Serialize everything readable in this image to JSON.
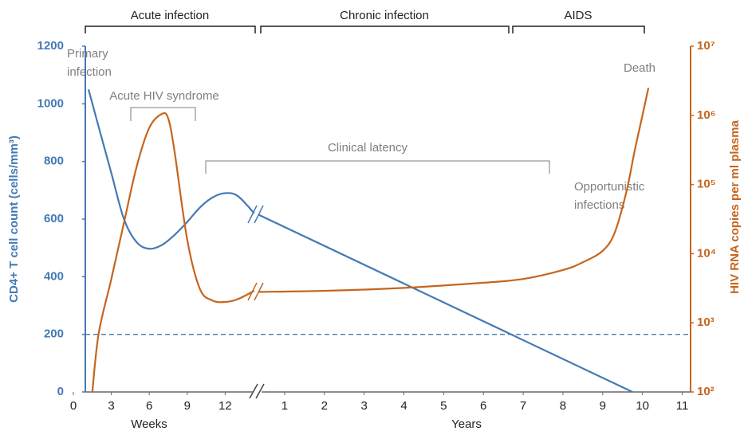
{
  "chart_data": {
    "type": "line",
    "phases": [
      "Acute infection",
      "Chronic infection",
      "AIDS"
    ],
    "ylabel": "CD4+ T cell count (cells/mm³)",
    "y2label": "HIV RNA copies per ml plasma",
    "ylim": [
      0,
      1200
    ],
    "yticks": [
      0,
      200,
      400,
      600,
      800,
      1000,
      1200
    ],
    "y2lim": [
      100,
      10000000
    ],
    "y2log": true,
    "y2ticks": [
      {
        "value": 100,
        "label": "10²"
      },
      {
        "value": 1000,
        "label": "10³"
      },
      {
        "value": 10000,
        "label": "10⁴"
      },
      {
        "value": 100000,
        "label": "10⁵"
      },
      {
        "value": 1000000,
        "label": "10⁶"
      },
      {
        "value": 10000000,
        "label": "10⁷"
      }
    ],
    "reference_line": 200,
    "annotations": {
      "primary": [
        "Primary",
        "infection"
      ],
      "syndrome": "Acute HIV syndrome",
      "latency": "Clinical latency",
      "opportunistic": [
        "Opportunistic",
        "infections"
      ],
      "death": "Death"
    },
    "segments": [
      {
        "xlabel": "Weeks",
        "xlim": [
          0,
          14.5
        ],
        "xticks": [
          0,
          3,
          6,
          9,
          12
        ],
        "series": [
          {
            "color": "#4479b5",
            "axis": "y",
            "x": [
              1.2,
              2,
              3,
              4,
              5,
              6,
              7,
              8,
              9,
              10,
              11,
              12,
              13,
              14.3
            ],
            "values": [
              1050,
              920,
              760,
              600,
              520,
              497,
              510,
              545,
              590,
              640,
              675,
              690,
              680,
              620
            ]
          },
          {
            "color": "#c5651e",
            "axis": "y2",
            "x": [
              1.5,
              2,
              3,
              4,
              5,
              6,
              7,
              7.5,
              8,
              9,
              10,
              11,
              12,
              13,
              14.3
            ],
            "values": [
              100,
              700,
              4300,
              28000,
              180000,
              660000,
              1050000,
              900000,
              300000,
              16000,
              3100,
              2100,
              2000,
              2200,
              2900
            ]
          }
        ]
      },
      {
        "xlabel": "Years",
        "xlim": [
          0.3,
          11.2
        ],
        "xticks": [
          1,
          2,
          3,
          4,
          5,
          6,
          7,
          8,
          9,
          10,
          11
        ],
        "series": [
          {
            "color": "#4479b5",
            "axis": "y",
            "x": [
              0.35,
              9.75
            ],
            "values": [
              615,
              0
            ]
          },
          {
            "color": "#c5651e",
            "axis": "y2",
            "x": [
              0.35,
              2,
              4,
              6,
              7,
              8,
              8.5,
              9,
              9.3,
              9.6,
              9.8,
              10,
              10.15
            ],
            "values": [
              2800,
              2900,
              3200,
              3800,
              4300,
              5800,
              7500,
              11000,
              20000,
              80000,
              300000,
              1000000,
              2500000
            ]
          }
        ]
      }
    ]
  }
}
